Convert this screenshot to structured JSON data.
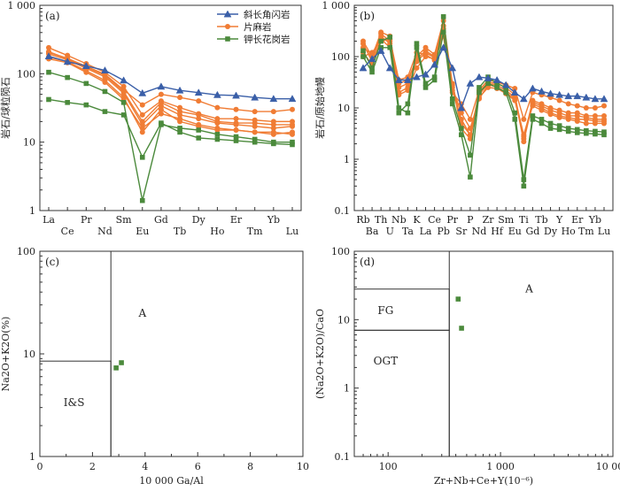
{
  "colors": {
    "amphibolite": "#3a5fa8",
    "gneiss": "#f07c34",
    "granite": "#4b8a3c",
    "axis": "#333333"
  },
  "chart_data": [
    {
      "id": "a",
      "panel_label": "(a)",
      "type": "line",
      "scale_y": "log",
      "ylabel": "岩石/球粒陨石",
      "y_tick_labels": [
        "1",
        "10",
        "100",
        "1 000"
      ],
      "y_ticks": [
        1,
        10,
        100,
        1000
      ],
      "ylim": [
        1,
        1000
      ],
      "categories": [
        "La",
        "Ce",
        "Pr",
        "Nd",
        "Sm",
        "Eu",
        "Gd",
        "Tb",
        "Dy",
        "Ho",
        "Er",
        "Tm",
        "Yb",
        "Lu"
      ],
      "legend": {
        "placement": "top-right",
        "entries": [
          {
            "label": "斜长角闪岩",
            "group": "amphibolite",
            "marker": "triangle"
          },
          {
            "label": "片麻岩",
            "group": "gneiss",
            "marker": "circle"
          },
          {
            "label": "钾长花岗岩",
            "group": "granite",
            "marker": "square"
          }
        ]
      },
      "series": [
        {
          "group": "amphibolite",
          "marker": "triangle",
          "values": [
            180,
            150,
            130,
            112,
            80,
            52,
            65,
            57,
            53,
            49,
            48,
            45,
            43,
            43
          ]
        },
        {
          "group": "gneiss",
          "marker": "circle",
          "values": [
            240,
            185,
            140,
            105,
            65,
            25,
            40,
            32,
            26,
            22,
            22,
            21,
            20,
            20
          ]
        },
        {
          "group": "gneiss",
          "marker": "circle",
          "values": [
            210,
            165,
            125,
            95,
            55,
            20,
            38,
            28,
            25,
            20,
            19,
            19,
            18,
            18
          ]
        },
        {
          "group": "gneiss",
          "marker": "circle",
          "values": [
            195,
            160,
            120,
            90,
            52,
            18,
            34,
            25,
            22,
            19,
            18,
            17,
            16,
            17
          ]
        },
        {
          "group": "gneiss",
          "marker": "circle",
          "values": [
            175,
            150,
            110,
            80,
            45,
            14,
            30,
            20,
            17,
            15,
            15,
            14,
            13,
            14
          ]
        },
        {
          "group": "gneiss",
          "marker": "circle",
          "values": [
            205,
            168,
            128,
            98,
            58,
            35,
            50,
            45,
            40,
            32,
            30,
            28,
            28,
            30
          ]
        },
        {
          "group": "gneiss",
          "marker": "circle",
          "values": [
            165,
            145,
            105,
            75,
            42,
            16,
            26,
            22,
            18,
            16,
            15,
            14,
            14,
            13
          ]
        },
        {
          "group": "granite",
          "marker": "square",
          "values": [
            105,
            88,
            72,
            55,
            38,
            1.4,
            18,
            16,
            15,
            13,
            12,
            11,
            10,
            10
          ]
        },
        {
          "group": "granite",
          "marker": "square",
          "values": [
            42,
            38,
            35,
            28,
            25,
            6,
            19,
            14,
            11.5,
            11,
            10.5,
            10,
            9.5,
            9.2
          ]
        }
      ]
    },
    {
      "id": "b",
      "panel_label": "(b)",
      "type": "line",
      "scale_y": "log",
      "ylabel": "岩石/原始地幔",
      "y_tick_labels": [
        "0.1",
        "1",
        "10",
        "100",
        "1 000"
      ],
      "y_ticks": [
        0.1,
        1,
        10,
        100,
        1000
      ],
      "ylim": [
        0.1,
        1000
      ],
      "categories": [
        "Rb",
        "Ba",
        "Th",
        "U",
        "Nb",
        "Ta",
        "K",
        "La",
        "Ce",
        "Pb",
        "Pr",
        "Sr",
        "P",
        "Nd",
        "Zr",
        "Hf",
        "Sm",
        "Eu",
        "Ti",
        "Gd",
        "Tb",
        "Dy",
        "Y",
        "Ho",
        "Er",
        "Tm",
        "Yb",
        "Lu"
      ],
      "series": [
        {
          "group": "amphibolite",
          "marker": "triangle",
          "values": [
            60,
            90,
            130,
            60,
            35,
            35,
            40,
            45,
            70,
            150,
            60,
            10,
            30,
            40,
            38,
            35,
            28,
            20,
            15,
            24,
            21,
            19,
            18,
            17,
            17,
            16,
            15,
            15
          ]
        },
        {
          "group": "gneiss",
          "marker": "circle",
          "values": [
            200,
            100,
            300,
            250,
            25,
            30,
            100,
            150,
            110,
            500,
            30,
            5,
            3,
            20,
            32,
            30,
            25,
            18,
            2.5,
            14,
            12,
            10,
            9,
            8,
            8,
            7,
            7,
            7
          ]
        },
        {
          "group": "gneiss",
          "marker": "circle",
          "values": [
            180,
            80,
            280,
            200,
            30,
            35,
            90,
            130,
            100,
            400,
            28,
            4,
            2.5,
            18,
            30,
            28,
            22,
            16,
            2.2,
            13,
            11,
            9,
            8,
            7,
            7,
            6.5,
            6,
            6
          ]
        },
        {
          "group": "gneiss",
          "marker": "circle",
          "values": [
            150,
            110,
            250,
            180,
            20,
            25,
            80,
            120,
            95,
            350,
            25,
            8,
            4,
            15,
            28,
            26,
            20,
            15,
            3,
            12,
            10,
            8,
            7,
            6.5,
            6,
            6,
            5.5,
            5.5
          ]
        },
        {
          "group": "gneiss",
          "marker": "circle",
          "values": [
            120,
            70,
            220,
            150,
            18,
            22,
            60,
            100,
            90,
            300,
            22,
            6,
            3,
            16,
            25,
            24,
            19,
            14,
            2.8,
            11,
            9,
            7.5,
            6.5,
            6,
            5.5,
            5,
            5,
            5
          ]
        },
        {
          "group": "gneiss",
          "marker": "circle",
          "values": [
            100,
            120,
            200,
            220,
            35,
            40,
            120,
            110,
            85,
            250,
            20,
            12,
            6,
            22,
            35,
            32,
            28,
            24,
            6,
            20,
            18,
            16,
            14,
            12,
            11,
            10,
            10,
            11
          ]
        },
        {
          "group": "granite",
          "marker": "square",
          "values": [
            130,
            60,
            200,
            240,
            10,
            8,
            180,
            30,
            40,
            600,
            15,
            4,
            1.2,
            25,
            40,
            30,
            25,
            8,
            0.4,
            7,
            6,
            5,
            4.5,
            4,
            3.8,
            3.6,
            3.5,
            3.4
          ]
        },
        {
          "group": "granite",
          "marker": "square",
          "values": [
            100,
            50,
            150,
            150,
            8,
            12,
            150,
            25,
            35,
            300,
            12,
            3,
            0.45,
            20,
            30,
            25,
            20,
            6,
            0.3,
            6,
            5,
            4,
            3.8,
            3.5,
            3.3,
            3.2,
            3.1,
            3
          ]
        }
      ]
    },
    {
      "id": "c",
      "panel_label": "(c)",
      "type": "scatter",
      "scale_y": "log",
      "xlabel": "10 000 Ga/Al",
      "ylabel": "Na2O+K2O(%)",
      "x_tick_labels": [
        "0",
        "2",
        "4",
        "6",
        "8",
        "10"
      ],
      "x_ticks": [
        0,
        2,
        4,
        6,
        8,
        10
      ],
      "y_tick_labels": [
        "1",
        "10",
        "100"
      ],
      "y_ticks": [
        1,
        10,
        100
      ],
      "xlim": [
        0,
        10
      ],
      "ylim": [
        1,
        100
      ],
      "fields": [
        {
          "label": "A",
          "label_at": [
            3.9,
            23
          ]
        },
        {
          "label": "I&S",
          "label_at": [
            1.3,
            3.1
          ],
          "box": {
            "x": [
              0,
              2.7
            ],
            "y": [
              1,
              8.5
            ]
          }
        },
        {
          "divider_x": 2.7,
          "y": [
            1,
            100
          ]
        }
      ],
      "points": [
        {
          "x": 2.9,
          "y": 7.3,
          "group": "granite"
        },
        {
          "x": 3.1,
          "y": 8.2,
          "group": "granite"
        }
      ]
    },
    {
      "id": "d",
      "panel_label": "(d)",
      "type": "scatter",
      "scale_x": "log",
      "scale_y": "log",
      "xlabel": "Zr+Nb+Ce+Y(10⁻⁶)",
      "ylabel": "(Na2O+K2O)/CaO",
      "x_tick_labels": [
        "100",
        "1 000",
        "10 000"
      ],
      "x_ticks": [
        100,
        1000,
        10000
      ],
      "y_tick_labels": [
        "0.1",
        "1",
        "10",
        "100"
      ],
      "y_ticks": [
        0.1,
        1,
        10,
        100
      ],
      "xlim": [
        50,
        10000
      ],
      "ylim": [
        0.1,
        100
      ],
      "fields": [
        {
          "label": "A",
          "label_at": [
            1800,
            25
          ]
        },
        {
          "label": "FG",
          "label_at": [
            95,
            12
          ],
          "box": {
            "x": [
              50,
              350
            ],
            "y": [
              7,
              28
            ]
          }
        },
        {
          "label": "OGT",
          "label_at": [
            95,
            2.2
          ],
          "box": {
            "x": [
              50,
              350
            ],
            "y": [
              0.1,
              7
            ]
          }
        },
        {
          "divider_x": 350,
          "y": [
            0.1,
            100
          ]
        }
      ],
      "points": [
        {
          "x": 420,
          "y": 20,
          "group": "granite"
        },
        {
          "x": 450,
          "y": 7.5,
          "group": "granite"
        }
      ]
    }
  ]
}
